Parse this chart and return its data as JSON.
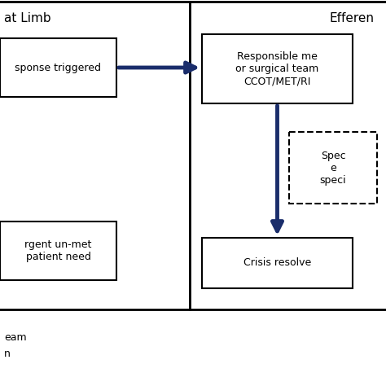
{
  "bg_color": "#ffffff",
  "arrow_color": "#1a2d6b",
  "box_color": "#000000",
  "text_color": "#000000",
  "section_left_title": "at Limb",
  "section_right_title": "Efferen",
  "box1_text": "sponse triggered",
  "box2_text": "rgent un-met\npatient need",
  "box3_text": "Responsible me\nor surgical team\nCCOT/MET/RI",
  "box4_text": "Crisis resolve",
  "dashed_box_text": "Spec\ne\nspeci",
  "legend_line1": "eam",
  "legend_line2": "n",
  "fig_width": 4.74,
  "fig_height": 4.74,
  "dpi": 100
}
